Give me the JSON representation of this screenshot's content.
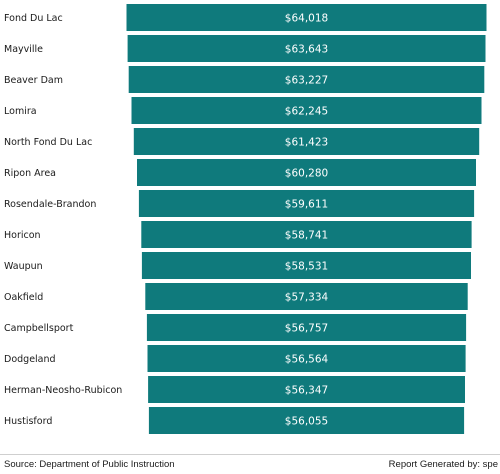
{
  "chart_data": {
    "type": "bar",
    "orientation": "horizontal",
    "categories": [
      "Fond Du Lac",
      "Mayville",
      "Beaver Dam",
      "Lomira",
      "North Fond Du Lac",
      "Ripon Area",
      "Rosendale-Brandon",
      "Horicon",
      "Waupun",
      "Oakfield",
      "Campbellsport",
      "Dodgeland",
      "Herman-Neosho-Rubicon",
      "Hustisford"
    ],
    "values": [
      64018,
      63643,
      63227,
      62245,
      61423,
      60280,
      59611,
      58741,
      58531,
      57334,
      56757,
      56564,
      56347,
      56055
    ],
    "value_labels": [
      "$64,018",
      "$63,643",
      "$63,227",
      "$62,245",
      "$61,423",
      "$60,280",
      "$59,611",
      "$58,741",
      "$58,531",
      "$57,334",
      "$56,757",
      "$56,564",
      "$56,347",
      "$56,055"
    ],
    "title": "",
    "xlabel": "",
    "ylabel": "",
    "bar_alignment": "centered",
    "grid": false,
    "legend": "none"
  },
  "colors": {
    "bar": "#0f7a7c",
    "bar_text": "#ffffff",
    "label_text": "#1a1a1a"
  },
  "footer": {
    "source": "Source: Department of Public Instruction",
    "report": "Report Generated by: spe"
  }
}
